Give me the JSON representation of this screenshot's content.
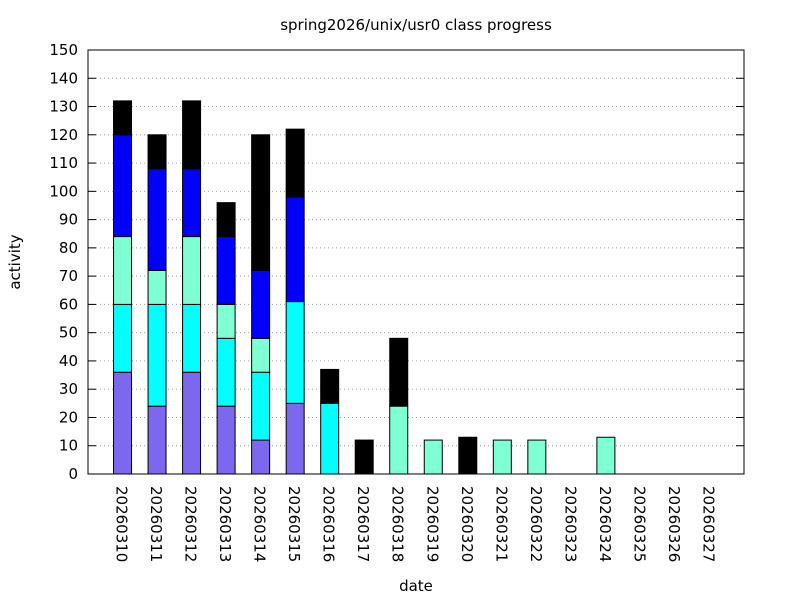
{
  "chart_data": {
    "type": "stacked-bar",
    "title": "spring2026/unix/usr0 class progress",
    "x_label": "date",
    "y_label": "activity",
    "categories": [
      "20260310",
      "20260311",
      "20260312",
      "20260313",
      "20260314",
      "20260315",
      "20260316",
      "20260317",
      "20260318",
      "20260319",
      "20260320",
      "20260321",
      "20260322",
      "20260323",
      "20260324",
      "20260325",
      "20260326",
      "20260327"
    ],
    "series": [
      {
        "color": "#7b68ee",
        "values": [
          36,
          24,
          36,
          24,
          12,
          25,
          0,
          0,
          0,
          0,
          0,
          0,
          0,
          0,
          0,
          0,
          0,
          0
        ]
      },
      {
        "color": "#00ffff",
        "values": [
          24,
          36,
          24,
          24,
          24,
          36,
          25,
          0,
          0,
          0,
          0,
          0,
          0,
          0,
          0,
          0,
          0,
          0
        ]
      },
      {
        "color": "#7fffd4",
        "values": [
          24,
          12,
          24,
          12,
          12,
          0,
          0,
          0,
          24,
          12,
          0,
          12,
          12,
          0,
          13,
          0,
          0,
          0
        ]
      },
      {
        "color": "#0000ff",
        "values": [
          36,
          36,
          24,
          24,
          24,
          37,
          0,
          0,
          0,
          0,
          0,
          0,
          0,
          0,
          0,
          0,
          0,
          0
        ]
      },
      {
        "color": "#000000",
        "values": [
          12,
          12,
          24,
          12,
          48,
          24,
          12,
          12,
          24,
          0,
          13,
          0,
          0,
          0,
          0,
          0,
          0,
          0
        ]
      }
    ],
    "ylim": [
      0,
      150
    ],
    "yticks": [
      0,
      10,
      20,
      30,
      40,
      50,
      60,
      70,
      80,
      90,
      100,
      110,
      120,
      130,
      140,
      150
    ],
    "grid": true
  }
}
